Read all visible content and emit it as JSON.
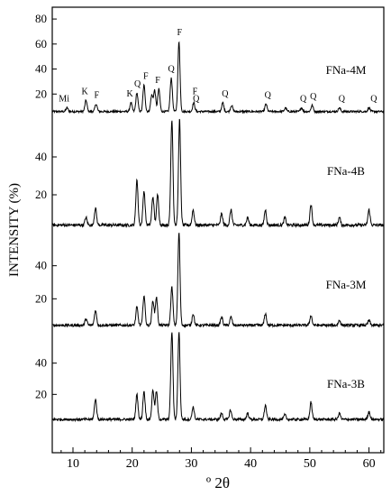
{
  "chart_data": {
    "type": "line",
    "title": "",
    "xlabel": "º 2θ",
    "ylabel": "INTENSITY (%)",
    "xlim": [
      6.5,
      62.5
    ],
    "x_ticks": [
      10,
      20,
      30,
      40,
      50,
      60
    ],
    "panels": [
      {
        "name": "FNa-4M",
        "ylim": [
          0,
          88
        ],
        "y_ticks": [
          20,
          40,
          60,
          80
        ],
        "baseline": 6,
        "peaks": [
          {
            "x": 9.0,
            "y": 9
          },
          {
            "x": 12.2,
            "y": 15
          },
          {
            "x": 13.9,
            "y": 12
          },
          {
            "x": 19.8,
            "y": 13
          },
          {
            "x": 20.8,
            "y": 21
          },
          {
            "x": 22.0,
            "y": 27
          },
          {
            "x": 23.3,
            "y": 19
          },
          {
            "x": 23.8,
            "y": 23
          },
          {
            "x": 24.5,
            "y": 24
          },
          {
            "x": 26.6,
            "y": 33
          },
          {
            "x": 27.9,
            "y": 62
          },
          {
            "x": 30.4,
            "y": 13
          },
          {
            "x": 35.3,
            "y": 13
          },
          {
            "x": 36.8,
            "y": 11
          },
          {
            "x": 42.6,
            "y": 12
          },
          {
            "x": 45.9,
            "y": 9
          },
          {
            "x": 48.6,
            "y": 9
          },
          {
            "x": 50.4,
            "y": 11
          },
          {
            "x": 55.0,
            "y": 9
          },
          {
            "x": 60.0,
            "y": 9
          }
        ],
        "annotations": [
          {
            "x": 8.5,
            "label": "Mi"
          },
          {
            "x": 12.0,
            "label": "K"
          },
          {
            "x": 14.0,
            "label": "F"
          },
          {
            "x": 19.6,
            "label": "K"
          },
          {
            "x": 20.9,
            "label": "Q"
          },
          {
            "x": 22.3,
            "label": "F"
          },
          {
            "x": 24.3,
            "label": "F"
          },
          {
            "x": 26.6,
            "label": "Q"
          },
          {
            "x": 28.0,
            "label": "F"
          },
          {
            "x": 30.6,
            "label": "F"
          },
          {
            "x": 30.8,
            "label": "Q"
          },
          {
            "x": 35.7,
            "label": "Q"
          },
          {
            "x": 42.9,
            "label": "Q"
          },
          {
            "x": 48.9,
            "label": "Q"
          },
          {
            "x": 50.6,
            "label": "Q"
          },
          {
            "x": 55.4,
            "label": "Q"
          },
          {
            "x": 60.8,
            "label": "Q"
          }
        ]
      },
      {
        "name": "FNa-4B",
        "ylim": [
          0,
          60
        ],
        "y_ticks": [
          20,
          40
        ],
        "baseline": 4,
        "peaks": [
          {
            "x": 12.2,
            "y": 8
          },
          {
            "x": 13.8,
            "y": 13
          },
          {
            "x": 20.8,
            "y": 28
          },
          {
            "x": 22.0,
            "y": 22
          },
          {
            "x": 23.5,
            "y": 19
          },
          {
            "x": 24.3,
            "y": 20
          },
          {
            "x": 26.7,
            "y": 60
          },
          {
            "x": 28.0,
            "y": 60
          },
          {
            "x": 30.3,
            "y": 12
          },
          {
            "x": 35.1,
            "y": 10
          },
          {
            "x": 36.7,
            "y": 12
          },
          {
            "x": 39.5,
            "y": 8
          },
          {
            "x": 42.5,
            "y": 12
          },
          {
            "x": 45.8,
            "y": 8
          },
          {
            "x": 50.2,
            "y": 15
          },
          {
            "x": 55.0,
            "y": 8
          },
          {
            "x": 60.0,
            "y": 12
          }
        ]
      },
      {
        "name": "FNa-3M",
        "ylim": [
          0,
          60
        ],
        "y_ticks": [
          20,
          40
        ],
        "baseline": 4,
        "peaks": [
          {
            "x": 12.2,
            "y": 8
          },
          {
            "x": 13.8,
            "y": 13
          },
          {
            "x": 20.8,
            "y": 15
          },
          {
            "x": 22.0,
            "y": 22
          },
          {
            "x": 23.5,
            "y": 19
          },
          {
            "x": 24.1,
            "y": 21
          },
          {
            "x": 26.7,
            "y": 27
          },
          {
            "x": 27.9,
            "y": 60
          },
          {
            "x": 30.3,
            "y": 11
          },
          {
            "x": 35.1,
            "y": 9
          },
          {
            "x": 36.7,
            "y": 9
          },
          {
            "x": 42.5,
            "y": 11
          },
          {
            "x": 50.2,
            "y": 10
          },
          {
            "x": 55.0,
            "y": 7
          },
          {
            "x": 60.0,
            "y": 7
          }
        ]
      },
      {
        "name": "FNa-3B",
        "ylim": [
          0,
          60
        ],
        "y_ticks": [
          20,
          40
        ],
        "baseline": 4,
        "peaks": [
          {
            "x": 13.8,
            "y": 17
          },
          {
            "x": 20.8,
            "y": 20
          },
          {
            "x": 22.0,
            "y": 22
          },
          {
            "x": 23.5,
            "y": 23
          },
          {
            "x": 24.1,
            "y": 22
          },
          {
            "x": 26.7,
            "y": 60
          },
          {
            "x": 27.9,
            "y": 60
          },
          {
            "x": 30.3,
            "y": 12
          },
          {
            "x": 35.1,
            "y": 8
          },
          {
            "x": 36.6,
            "y": 10
          },
          {
            "x": 39.5,
            "y": 8
          },
          {
            "x": 42.5,
            "y": 13
          },
          {
            "x": 45.8,
            "y": 7
          },
          {
            "x": 50.2,
            "y": 15
          },
          {
            "x": 55.0,
            "y": 8
          },
          {
            "x": 60.0,
            "y": 9
          }
        ]
      }
    ]
  }
}
